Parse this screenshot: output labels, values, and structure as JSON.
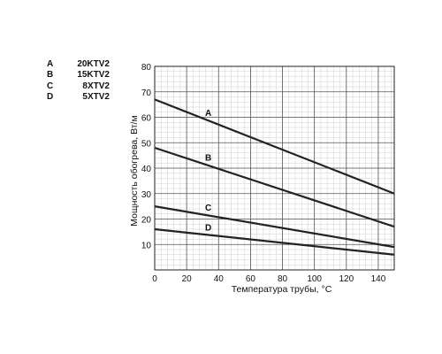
{
  "legend": [
    {
      "code": "A",
      "name": "20KTV2"
    },
    {
      "code": "B",
      "name": "15KTV2"
    },
    {
      "code": "C",
      "name": "8XTV2"
    },
    {
      "code": "D",
      "name": "5XTV2"
    }
  ],
  "chart_data": {
    "type": "line",
    "title": "",
    "xlabel": "Температура трубы, °C",
    "ylabel": "Мощность обогрева, Вт/м",
    "xlim": [
      0,
      150
    ],
    "ylim": [
      0,
      80
    ],
    "xticks": [
      0,
      20,
      40,
      60,
      80,
      100,
      120,
      140
    ],
    "yticks": [
      10,
      20,
      30,
      40,
      50,
      60,
      70,
      80
    ],
    "grid": true,
    "series": [
      {
        "name": "A",
        "x": [
          0,
          150
        ],
        "y": [
          67,
          30
        ]
      },
      {
        "name": "B",
        "x": [
          0,
          150
        ],
        "y": [
          48,
          17
        ]
      },
      {
        "name": "C",
        "x": [
          0,
          150
        ],
        "y": [
          25,
          9
        ]
      },
      {
        "name": "D",
        "x": [
          0,
          150
        ],
        "y": [
          16,
          6
        ]
      }
    ],
    "line_color": "#222222"
  }
}
